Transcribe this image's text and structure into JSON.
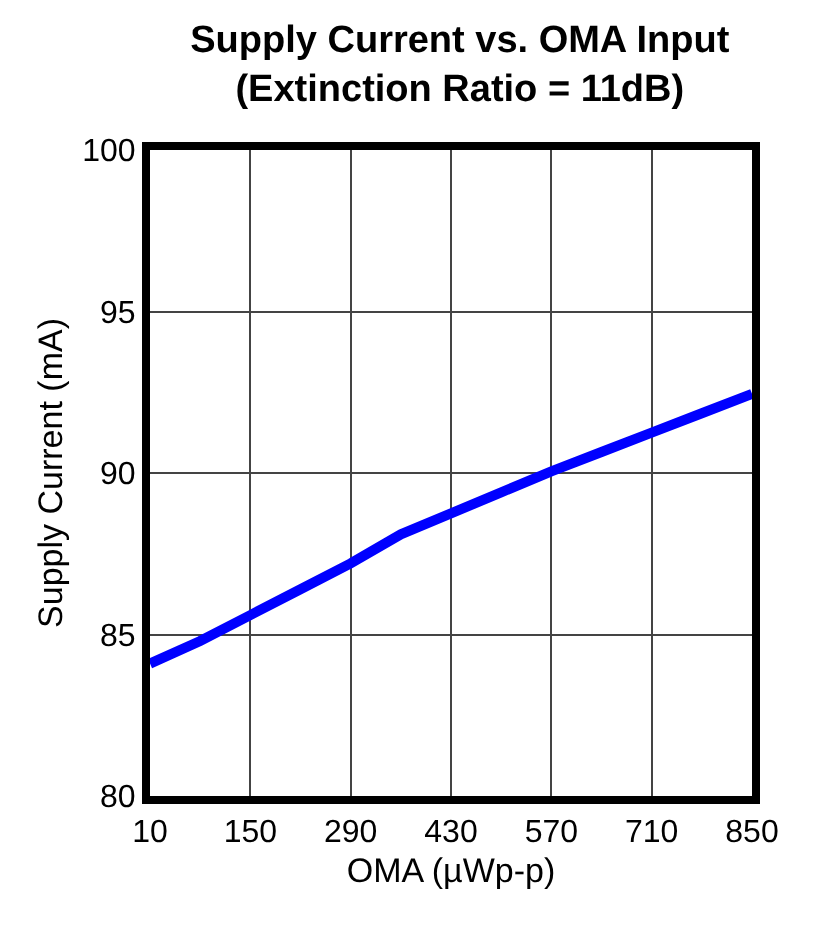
{
  "chart_data": {
    "type": "line",
    "title": "Supply Current vs. OMA Input\n(Extinction Ratio = 11dB)",
    "xlabel": "OMA (µWp-p)",
    "ylabel": "Supply Current (mA)",
    "x": [
      10,
      80,
      150,
      220,
      290,
      360,
      430,
      500,
      570,
      640,
      710,
      780,
      850
    ],
    "series": [
      {
        "color": "#0000ff",
        "values": [
          84.1,
          84.8,
          85.6,
          86.4,
          87.2,
          88.1,
          88.75,
          89.4,
          90.05,
          90.65,
          91.25,
          91.85,
          92.45
        ]
      }
    ],
    "xlim": [
      10,
      850
    ],
    "xticks": [
      10,
      150,
      290,
      430,
      570,
      710,
      850
    ],
    "ylim": [
      80,
      100
    ],
    "yticks": [
      80,
      85,
      90,
      95,
      100
    ],
    "grid": true,
    "line_style": "solid",
    "marker": "none"
  }
}
